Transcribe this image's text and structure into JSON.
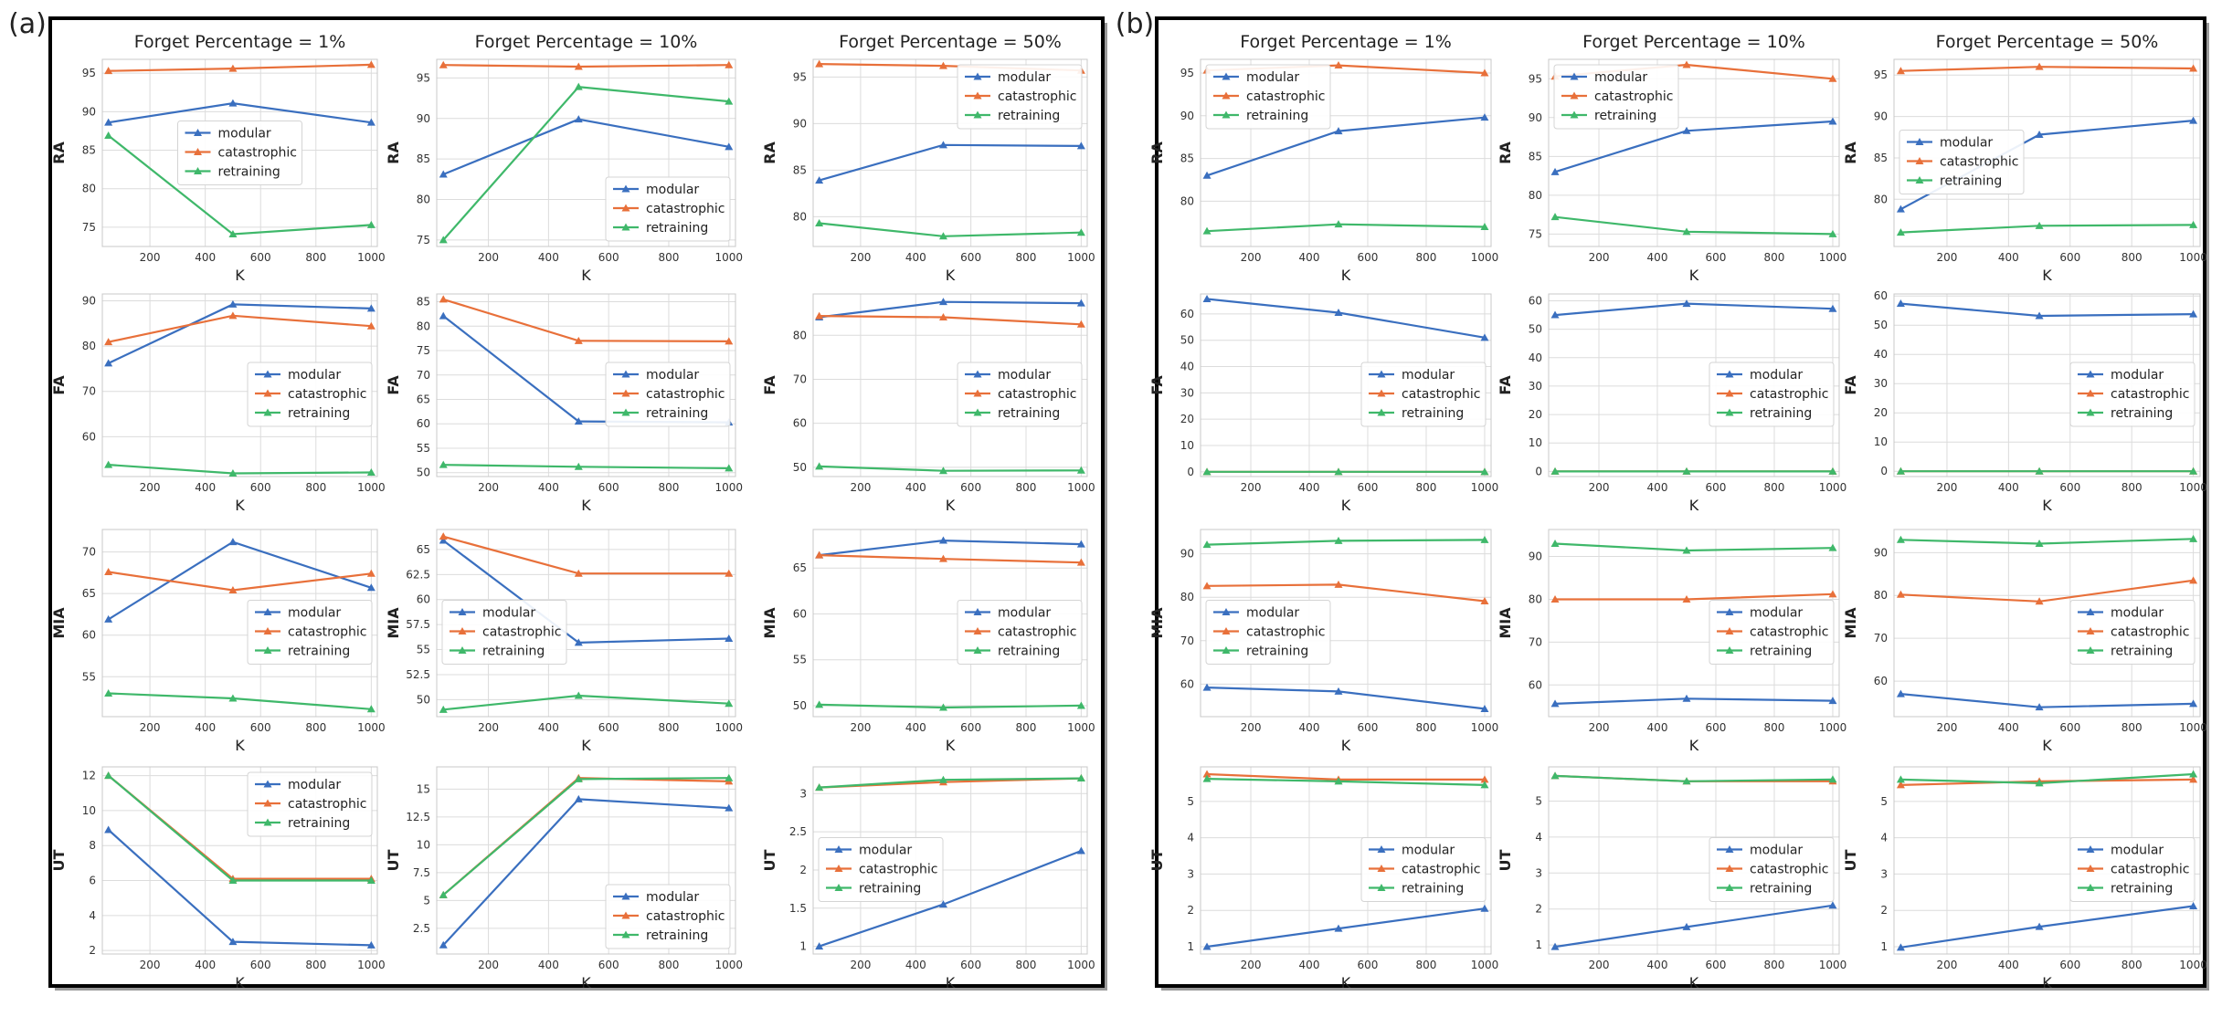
{
  "panels": [
    {
      "label": "(a)"
    },
    {
      "label": "(b)"
    }
  ],
  "legend_labels": [
    "modular",
    "catastrophic",
    "retraining"
  ],
  "colors": {
    "modular": "#3a6fbf",
    "catastrophic": "#e8703a",
    "retraining": "#3fb86a",
    "grid": "#dcdcdc",
    "frame": "#000000"
  },
  "chart_data": [
    {
      "panel": "(a)",
      "columns": [
        "Forget Percentage = 1%",
        "Forget Percentage = 10%",
        "Forget Percentage = 50%"
      ],
      "rows": [
        "RA",
        "FA",
        "MIA",
        "UT"
      ],
      "type": "line",
      "x": [
        50,
        500,
        1000
      ],
      "xlabel": "K",
      "xticks": [
        200,
        400,
        600,
        800,
        1000
      ],
      "subplots": [
        [
          {
            "ylabel": "RA",
            "yrange": [
              72.5,
              96.8
            ],
            "yticks": [
              75,
              80,
              85,
              90,
              95
            ],
            "legend": "center",
            "series": {
              "modular": [
                88.6,
                91.1,
                88.6
              ],
              "catastrophic": [
                95.3,
                95.6,
                96.1
              ],
              "retraining": [
                86.9,
                74.1,
                75.3
              ]
            }
          },
          {
            "ylabel": "RA",
            "yrange": [
              74.2,
              97.3
            ],
            "yticks": [
              75,
              80,
              85,
              90,
              95
            ],
            "legend": "lower-right",
            "series": {
              "modular": [
                83.1,
                89.9,
                86.5
              ],
              "catastrophic": [
                96.6,
                96.4,
                96.6
              ],
              "retraining": [
                75,
                93.9,
                92.1
              ]
            }
          },
          {
            "ylabel": "RA",
            "yrange": [
              76.8,
              96.9
            ],
            "yticks": [
              80,
              85,
              90,
              95
            ],
            "legend": "upper-right",
            "series": {
              "modular": [
                83.9,
                87.7,
                87.6
              ],
              "catastrophic": [
                96.4,
                96.2,
                95.7
              ],
              "retraining": [
                79.3,
                77.9,
                78.3
              ]
            }
          }
        ],
        [
          {
            "ylabel": "FA",
            "yrange": [
              51.2,
              91.5
            ],
            "yticks": [
              60,
              70,
              80,
              90
            ],
            "legend": "center-right",
            "series": {
              "modular": [
                76.2,
                89.2,
                88.3
              ],
              "catastrophic": [
                80.9,
                86.7,
                84.4
              ],
              "retraining": [
                53.8,
                51.9,
                52.1
              ]
            }
          },
          {
            "ylabel": "FA",
            "yrange": [
              49.2,
              86.6
            ],
            "yticks": [
              50,
              55,
              60,
              65,
              70,
              75,
              80,
              85
            ],
            "legend": "center-right",
            "series": {
              "modular": [
                82.1,
                60.5,
                60.3
              ],
              "catastrophic": [
                85.5,
                77,
                76.9
              ],
              "retraining": [
                51.6,
                51.2,
                50.9
              ]
            }
          },
          {
            "ylabel": "FA",
            "yrange": [
              47.9,
              89.4
            ],
            "yticks": [
              50,
              60,
              70,
              80
            ],
            "legend": "center-right",
            "series": {
              "modular": [
                84.1,
                87.6,
                87.3
              ],
              "catastrophic": [
                84.4,
                84.1,
                82.5
              ],
              "retraining": [
                50.2,
                49.2,
                49.3
              ]
            }
          }
        ],
        [
          {
            "ylabel": "MIA",
            "yrange": [
              50.2,
              72.7
            ],
            "yticks": [
              55,
              60,
              65,
              70
            ],
            "legend": "center-right",
            "series": {
              "modular": [
                61.9,
                71.2,
                65.7
              ],
              "catastrophic": [
                67.6,
                65.4,
                67.4
              ],
              "retraining": [
                53,
                52.4,
                51.1
              ]
            }
          },
          {
            "ylabel": "MIA",
            "yrange": [
              48.3,
              67
            ],
            "yticks": [
              50,
              52.5,
              55,
              57.5,
              60,
              62.5,
              65
            ],
            "legend": "center-left",
            "series": {
              "modular": [
                65.9,
                55.7,
                56.1
              ],
              "catastrophic": [
                66.3,
                62.6,
                62.6
              ],
              "retraining": [
                49,
                50.4,
                49.6
              ]
            }
          },
          {
            "ylabel": "MIA",
            "yrange": [
              48.8,
              69.2
            ],
            "yticks": [
              50,
              55,
              60,
              65
            ],
            "legend": "center-right",
            "series": {
              "modular": [
                66.4,
                68,
                67.6
              ],
              "catastrophic": [
                66.4,
                66,
                65.6
              ],
              "retraining": [
                50.1,
                49.8,
                50
              ]
            }
          }
        ],
        [
          {
            "ylabel": "UT",
            "yrange": [
              1.8,
              12.5
            ],
            "yticks": [
              2,
              4,
              6,
              8,
              10,
              12
            ],
            "legend": "upper-right",
            "series": {
              "modular": [
                8.9,
                2.5,
                2.3
              ],
              "catastrophic": [
                12,
                6.1,
                6.1
              ],
              "retraining": [
                12,
                6,
                6
              ]
            }
          },
          {
            "ylabel": "UT",
            "yrange": [
              0.2,
              17
            ],
            "yticks": [
              2.5,
              5,
              7.5,
              10,
              12.5,
              15
            ],
            "legend": "lower-right",
            "series": {
              "modular": [
                1,
                14.1,
                13.3
              ],
              "catastrophic": [
                5.5,
                16,
                15.7
              ],
              "retraining": [
                5.5,
                15.9,
                16
              ]
            }
          },
          {
            "ylabel": "UT",
            "yrange": [
              0.9,
              3.35
            ],
            "yticks": [
              1,
              1.5,
              2,
              2.5,
              3
            ],
            "legend": "center-left",
            "series": {
              "modular": [
                1,
                1.55,
                2.25
              ],
              "catastrophic": [
                3.08,
                3.15,
                3.2
              ],
              "retraining": [
                3.08,
                3.18,
                3.2
              ]
            }
          }
        ]
      ]
    },
    {
      "panel": "(b)",
      "columns": [
        "Forget Percentage = 1%",
        "Forget Percentage = 10%",
        "Forget Percentage = 50%"
      ],
      "rows": [
        "RA",
        "FA",
        "MIA",
        "UT"
      ],
      "type": "line",
      "x": [
        50,
        500,
        1000
      ],
      "xlabel": "K",
      "xticks": [
        200,
        400,
        600,
        800,
        1000
      ],
      "subplots": [
        [
          {
            "ylabel": "RA",
            "yrange": [
              74.7,
              96.6
            ],
            "yticks": [
              80,
              85,
              90,
              95
            ],
            "legend": "upper-left",
            "series": {
              "modular": [
                83,
                88.2,
                89.8
              ],
              "catastrophic": [
                95.3,
                95.9,
                95
              ],
              "retraining": [
                76.5,
                77.3,
                77
              ]
            }
          },
          {
            "ylabel": "RA",
            "yrange": [
              73.4,
              97.5
            ],
            "yticks": [
              75,
              80,
              85,
              90,
              95
            ],
            "legend": "upper-left",
            "series": {
              "modular": [
                83,
                88.3,
                89.5
              ],
              "catastrophic": [
                95.3,
                96.8,
                95
              ],
              "retraining": [
                77.2,
                75.3,
                75
              ]
            }
          },
          {
            "ylabel": "RA",
            "yrange": [
              74.3,
              96.9
            ],
            "yticks": [
              80,
              85,
              90,
              95
            ],
            "legend": "center-left",
            "series": {
              "modular": [
                78.8,
                87.8,
                89.5
              ],
              "catastrophic": [
                95.5,
                96,
                95.8
              ],
              "retraining": [
                76,
                76.8,
                76.9
              ]
            }
          }
        ],
        [
          {
            "ylabel": "FA",
            "yrange": [
              -1.8,
              67.6
            ],
            "yticks": [
              0,
              10,
              20,
              30,
              40,
              50,
              60
            ],
            "legend": "center-right",
            "series": {
              "modular": [
                65.7,
                60.5,
                51
              ],
              "catastrophic": [
                0,
                0,
                0
              ],
              "retraining": [
                0,
                0,
                0
              ]
            }
          },
          {
            "ylabel": "FA",
            "yrange": [
              -1.8,
              62.4
            ],
            "yticks": [
              0,
              10,
              20,
              30,
              40,
              50,
              60
            ],
            "legend": "center-right",
            "series": {
              "modular": [
                55,
                59,
                57.2
              ],
              "catastrophic": [
                0,
                0,
                0
              ],
              "retraining": [
                0,
                0,
                0
              ]
            }
          },
          {
            "ylabel": "FA",
            "yrange": [
              -1.8,
              60.7
            ],
            "yticks": [
              0,
              10,
              20,
              30,
              40,
              50,
              60
            ],
            "legend": "center-right",
            "series": {
              "modular": [
                57.4,
                53.2,
                53.8
              ],
              "catastrophic": [
                0,
                0,
                0
              ],
              "retraining": [
                0,
                0,
                0
              ]
            }
          }
        ],
        [
          {
            "ylabel": "MIA",
            "yrange": [
              52.5,
              95.6
            ],
            "yticks": [
              60,
              70,
              80,
              90
            ],
            "legend": "center-left",
            "series": {
              "modular": [
                59.2,
                58.3,
                54.3
              ],
              "catastrophic": [
                82.6,
                82.9,
                79.1
              ],
              "retraining": [
                92.1,
                93,
                93.2
              ]
            }
          },
          {
            "ylabel": "MIA",
            "yrange": [
              52.6,
              96.3
            ],
            "yticks": [
              60,
              70,
              80,
              90
            ],
            "legend": "center-right",
            "series": {
              "modular": [
                55.6,
                56.8,
                56.3
              ],
              "catastrophic": [
                80,
                80,
                81.2
              ],
              "retraining": [
                93,
                91.4,
                92
              ]
            }
          },
          {
            "ylabel": "MIA",
            "yrange": [
              51.7,
              95.4
            ],
            "yticks": [
              60,
              70,
              80,
              90
            ],
            "legend": "center-right",
            "series": {
              "modular": [
                57,
                53.9,
                54.7
              ],
              "catastrophic": [
                80.2,
                78.6,
                83.5
              ],
              "retraining": [
                93,
                92.1,
                93.2
              ]
            }
          }
        ],
        [
          {
            "ylabel": "UT",
            "yrange": [
              0.8,
              5.95
            ],
            "yticks": [
              1,
              2,
              3,
              4,
              5
            ],
            "legend": "center-right",
            "series": {
              "modular": [
                1,
                1.5,
                2.05
              ],
              "catastrophic": [
                5.75,
                5.6,
                5.6
              ],
              "retraining": [
                5.62,
                5.55,
                5.45
              ]
            }
          },
          {
            "ylabel": "UT",
            "yrange": [
              0.75,
              5.95
            ],
            "yticks": [
              1,
              2,
              3,
              4,
              5
            ],
            "legend": "center-right",
            "series": {
              "modular": [
                0.95,
                1.5,
                2.1
              ],
              "catastrophic": [
                5.7,
                5.55,
                5.55
              ],
              "retraining": [
                5.7,
                5.55,
                5.6
              ]
            }
          },
          {
            "ylabel": "UT",
            "yrange": [
              0.8,
              5.95
            ],
            "yticks": [
              1,
              2,
              3,
              4,
              5
            ],
            "legend": "center-right",
            "series": {
              "modular": [
                0.98,
                1.55,
                2.12
              ],
              "catastrophic": [
                5.45,
                5.55,
                5.6
              ],
              "retraining": [
                5.6,
                5.5,
                5.75
              ]
            }
          }
        ]
      ]
    }
  ]
}
